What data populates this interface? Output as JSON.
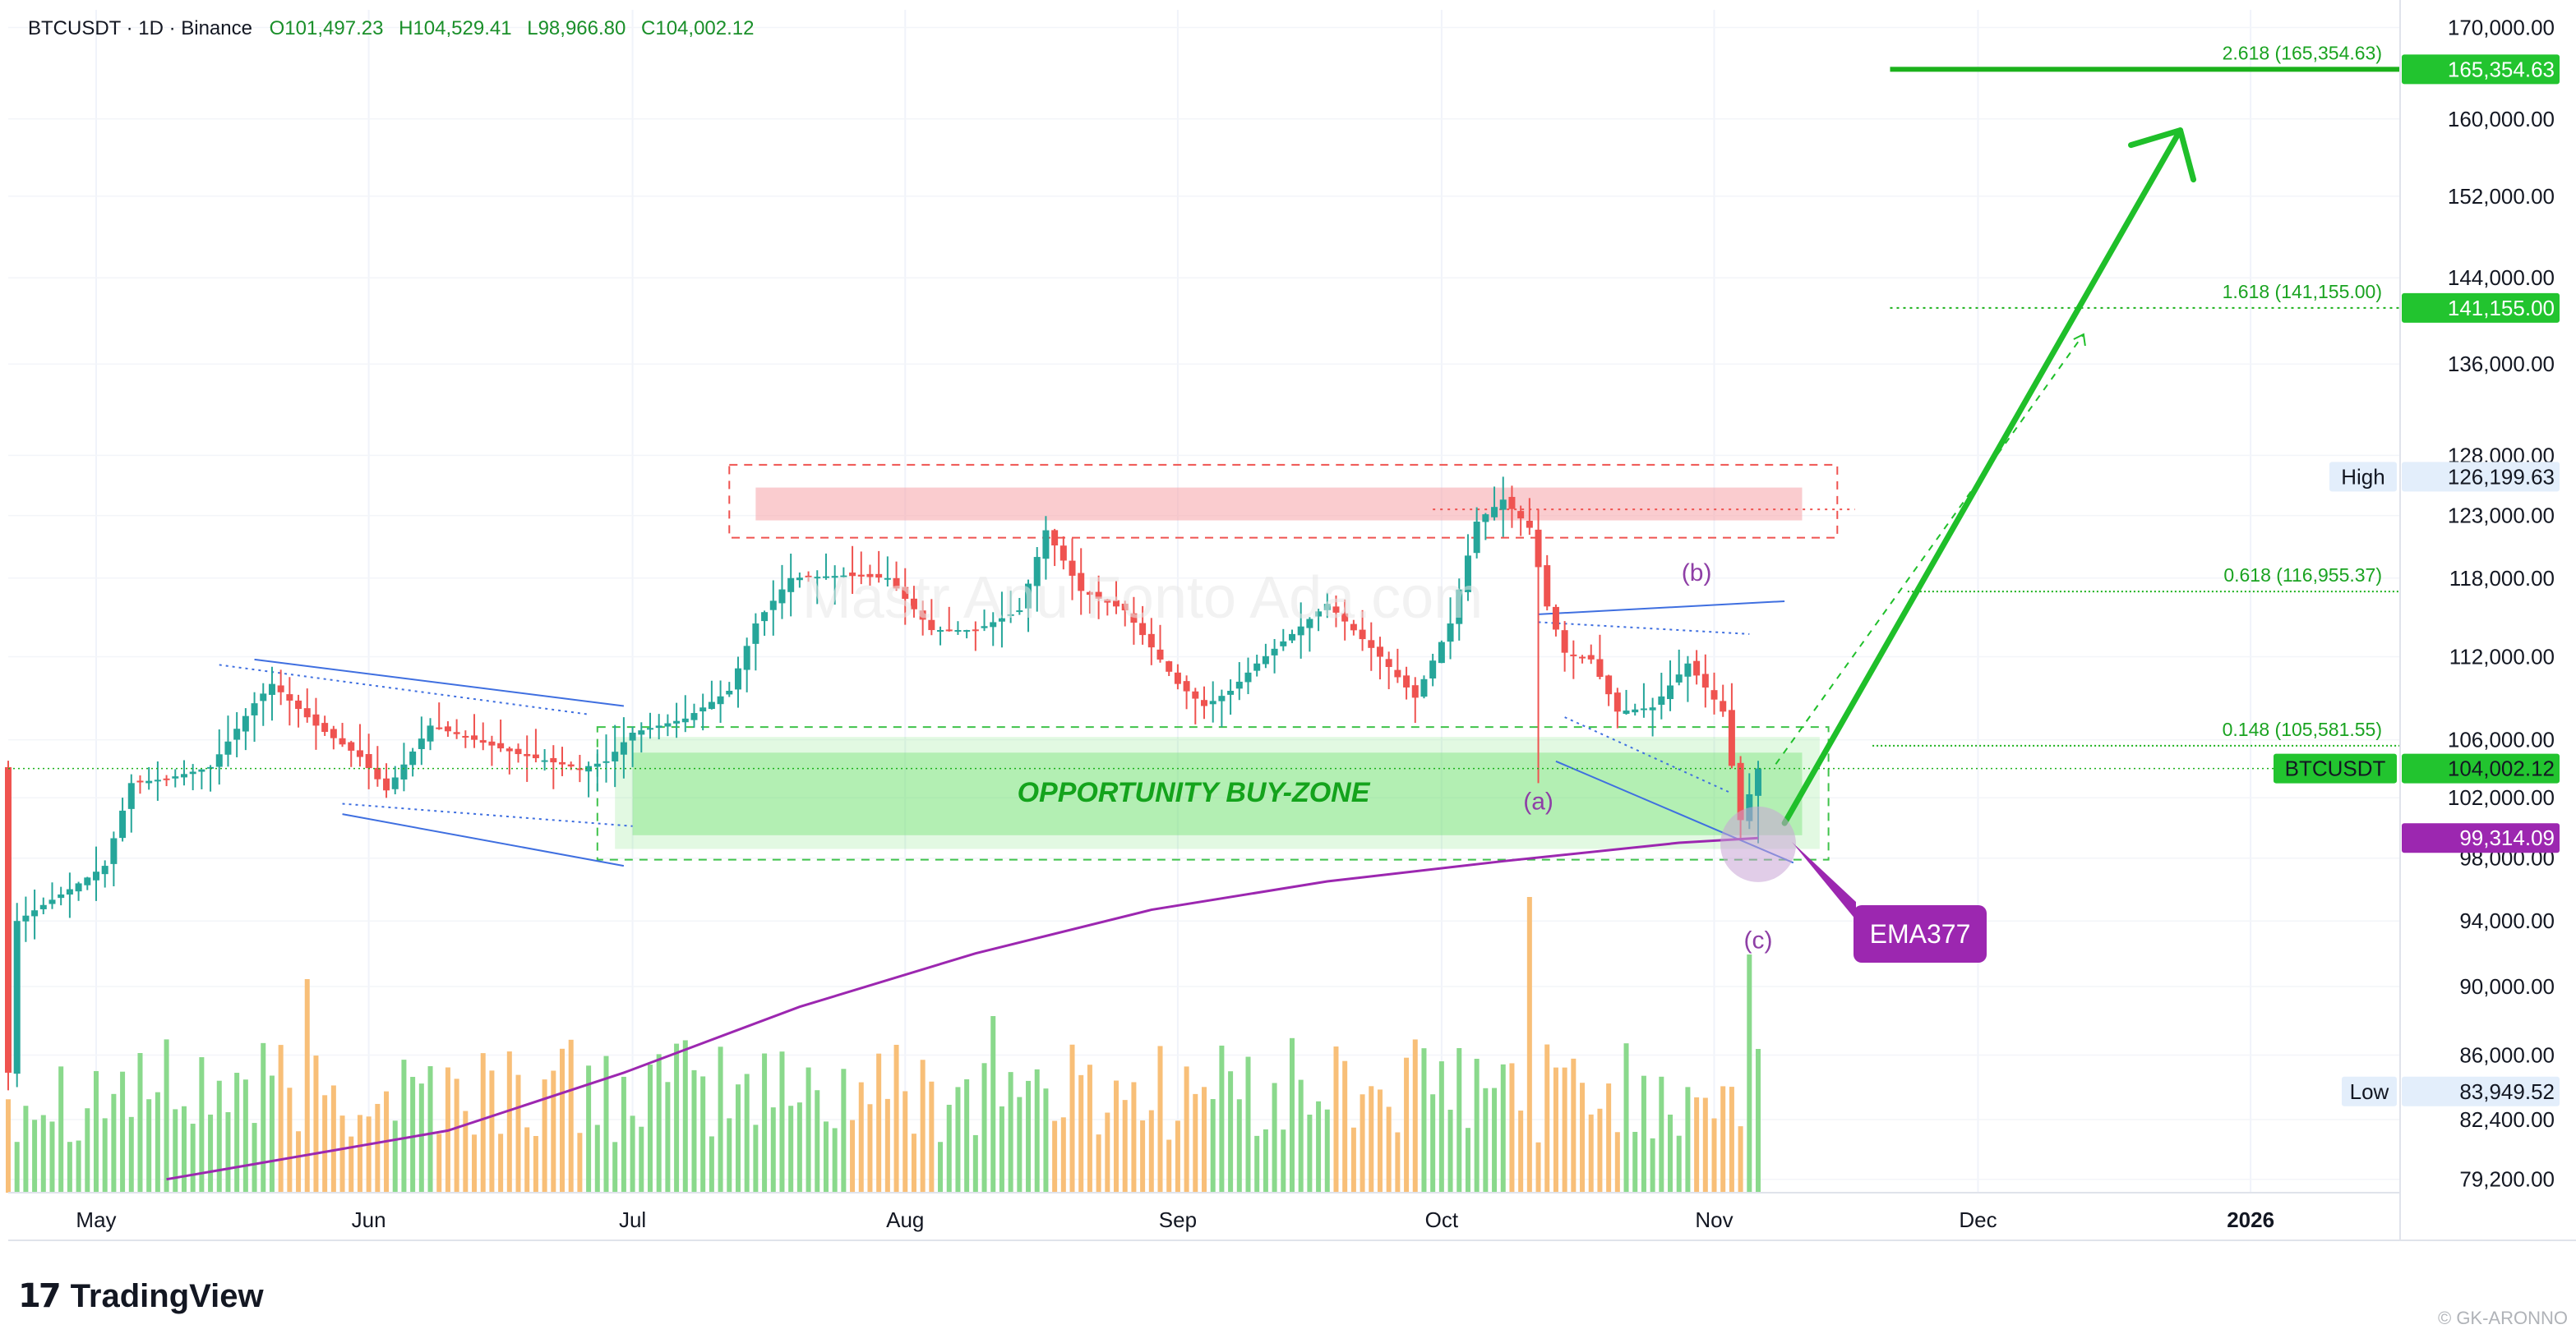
{
  "header": {
    "symbol": "BTCUSDT · 1D · Binance",
    "open": "O101,497.23",
    "high": "H104,529.41",
    "low": "L98,966.80",
    "close": "C104,002.12"
  },
  "colors": {
    "up": "#26a69a",
    "down": "#ef5350",
    "zone_green": "#7be37b",
    "resistance_red": "#f5a3a8",
    "ema": "#9c27b0",
    "fib": "#1bb11b",
    "target_arrow": "#1fbf2a",
    "trendline": "#3f6fe0"
  },
  "annotations": {
    "buy_zone": "OPPORTUNITY BUY-ZONE",
    "wave_a": "(a)",
    "wave_b": "(b)",
    "wave_c": "(c)",
    "ema_callout": "EMA377",
    "watermark_text": "Mastr Anu  Fonto  Ada.com"
  },
  "price_axis": {
    "labels": [
      "170,000.00",
      "160,000.00",
      "152,000.00",
      "144,000.00",
      "136,000.00",
      "128,000.00",
      "123,000.00",
      "118,000.00",
      "112,000.00",
      "106,000.00",
      "102,000.00",
      "98,000.00",
      "94,000.00",
      "90,000.00",
      "86,000.00",
      "82,400.00",
      "79,200.00"
    ],
    "badges": [
      {
        "name": "fib-2618-badge",
        "text": "165,354.63",
        "value": 165354.63,
        "bg": "#22c42f",
        "fg": "#ffffff"
      },
      {
        "name": "fib-1618-badge",
        "text": "141,155.00",
        "value": 141155,
        "bg": "#22c42f",
        "fg": "#ffffff"
      },
      {
        "name": "high-badge",
        "label": "High",
        "text": "126,199.63",
        "value": 126199.63,
        "bg": "#e3eefb",
        "fg": "#131722"
      },
      {
        "name": "last-price-badge",
        "label": "BTCUSDT",
        "text": "104,002.12",
        "value": 104002.12,
        "bg": "#22c42f",
        "fg": "#131722"
      },
      {
        "name": "ema-badge",
        "text": "99,314.09",
        "value": 99314.09,
        "bg": "#9c27b0",
        "fg": "#ffffff"
      },
      {
        "name": "low-badge",
        "label": "Low",
        "text": "83,949.52",
        "value": 83949.52,
        "bg": "#e3eefb",
        "fg": "#131722"
      }
    ]
  },
  "time_axis": {
    "labels": [
      {
        "text": "May",
        "day": 0
      },
      {
        "text": "Jun",
        "day": 31
      },
      {
        "text": "Jul",
        "day": 61
      },
      {
        "text": "Aug",
        "day": 92
      },
      {
        "text": "Sep",
        "day": 123
      },
      {
        "text": "Oct",
        "day": 153
      },
      {
        "text": "Nov",
        "day": 184
      },
      {
        "text": "Dec",
        "day": 214
      },
      {
        "text": "2026",
        "day": 245
      }
    ]
  },
  "fib_levels": [
    {
      "label": "2.618 (165,354.63)",
      "value": 165354.63
    },
    {
      "label": "1.618 (141,155.00)",
      "value": 141155.0
    },
    {
      "label": "0.618 (116,955.37)",
      "value": 116955.37
    },
    {
      "label": "0.148 (105,581.55)",
      "value": 105581.55
    }
  ],
  "chart_data": {
    "type": "candlestick",
    "symbol": "BTCUSDT",
    "interval": "1D",
    "y_scale": "log",
    "y_range": [
      78500,
      172000
    ],
    "x_range_days": [
      -10,
      262
    ],
    "x_axis_start": "2025-05-01",
    "last_close": 104002.12,
    "session_high": 126199.63,
    "session_low": 83949.52,
    "ema377_last": 99314.09,
    "ema377_points": [
      [
        8,
        79200
      ],
      [
        40,
        81800
      ],
      [
        60,
        85000
      ],
      [
        80,
        88800
      ],
      [
        100,
        92000
      ],
      [
        120,
        94700
      ],
      [
        140,
        96500
      ],
      [
        160,
        97800
      ],
      [
        180,
        99000
      ],
      [
        189,
        99314.09
      ]
    ],
    "close_path": [
      [
        -10,
        85000
      ],
      [
        -9,
        94000
      ],
      [
        -6,
        95000
      ],
      [
        -3,
        96000
      ],
      [
        1,
        97500
      ],
      [
        4,
        103000
      ],
      [
        8,
        103300
      ],
      [
        13,
        104100
      ],
      [
        18,
        108600
      ],
      [
        20,
        110000
      ],
      [
        25,
        107000
      ],
      [
        30,
        104800
      ],
      [
        33,
        102500
      ],
      [
        38,
        107000
      ],
      [
        43,
        106000
      ],
      [
        48,
        105000
      ],
      [
        55,
        104000
      ],
      [
        58,
        104500
      ],
      [
        61,
        106500
      ],
      [
        67,
        107500
      ],
      [
        72,
        109500
      ],
      [
        75,
        114500
      ],
      [
        79,
        118000
      ],
      [
        85,
        118200
      ],
      [
        90,
        118000
      ],
      [
        95,
        114000
      ],
      [
        100,
        114000
      ],
      [
        105,
        115500
      ],
      [
        108,
        121800
      ],
      [
        112,
        117000
      ],
      [
        117,
        115500
      ],
      [
        120,
        112700
      ],
      [
        123,
        110000
      ],
      [
        126,
        108400
      ],
      [
        129,
        109500
      ],
      [
        132,
        111500
      ],
      [
        136,
        113700
      ],
      [
        140,
        116000
      ],
      [
        146,
        112000
      ],
      [
        150,
        109000
      ],
      [
        154,
        114500
      ],
      [
        157,
        122500
      ],
      [
        160,
        124300
      ],
      [
        163,
        122000
      ],
      [
        165,
        115800
      ],
      [
        167,
        112300
      ],
      [
        170,
        111800
      ],
      [
        173,
        108000
      ],
      [
        177,
        108300
      ],
      [
        181,
        111500
      ],
      [
        185,
        108000
      ],
      [
        187,
        100500
      ],
      [
        189,
        104002.12
      ]
    ],
    "candle_seed": 12345,
    "volume_profile": "green and orange bars, spike near 2025-10-10 and at latest candle"
  }
}
